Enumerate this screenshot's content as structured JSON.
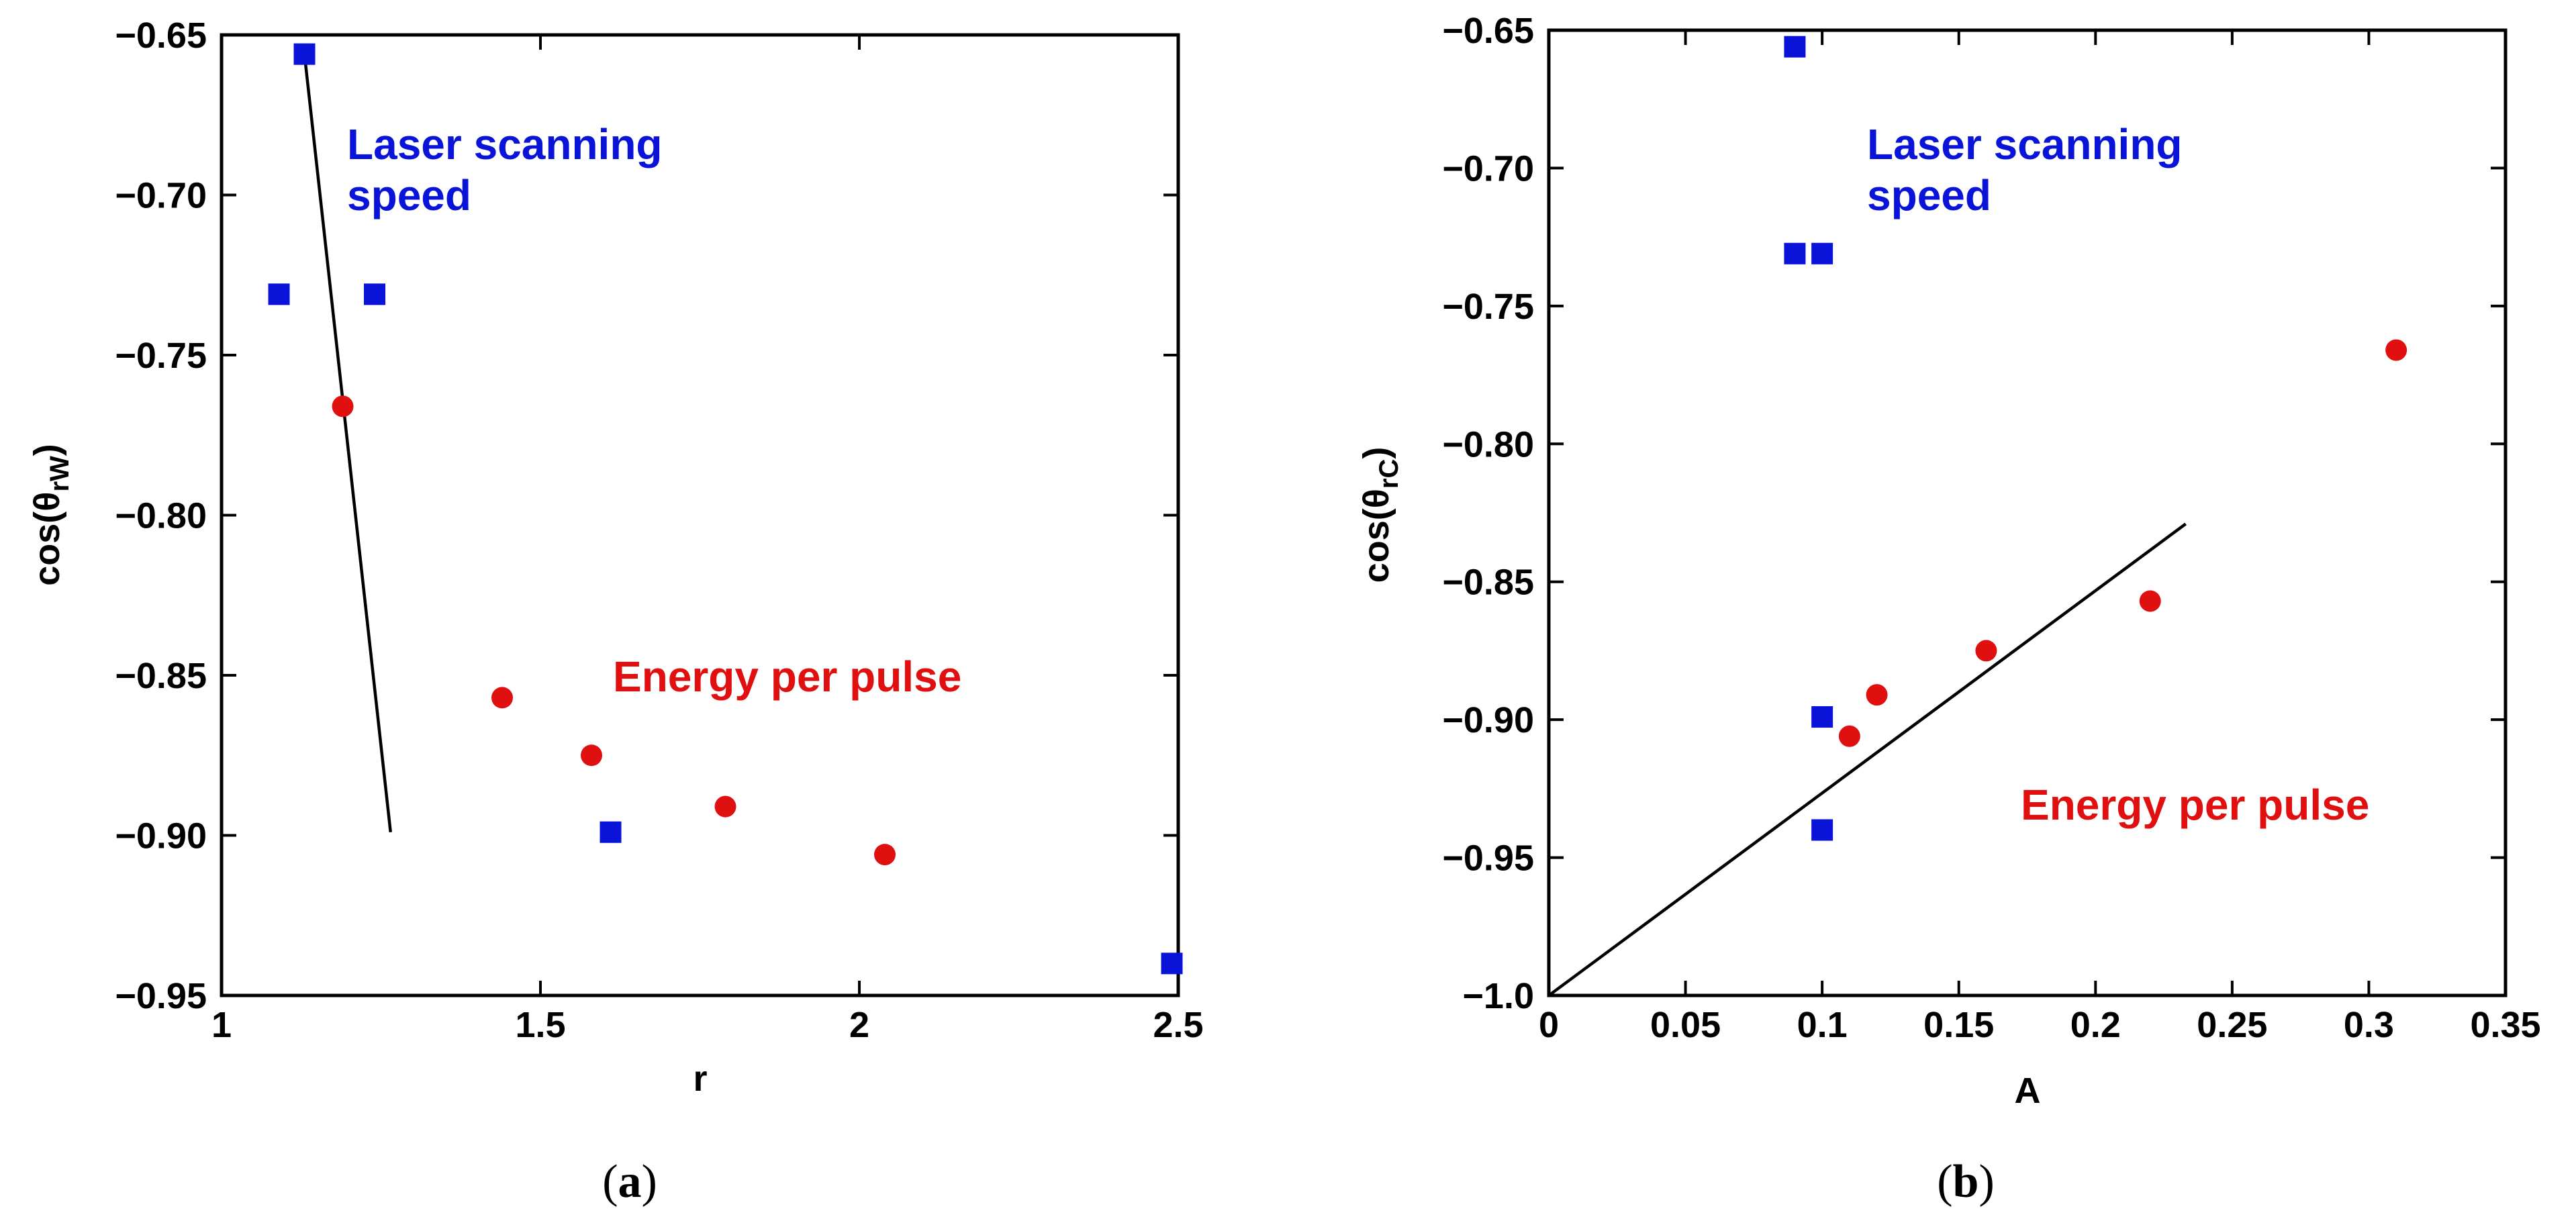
{
  "colors": {
    "series_speed": "#0a14d8",
    "series_energy": "#e01010",
    "fit": "#000000"
  },
  "chart_data": [
    {
      "id": "a",
      "type": "scatter",
      "xlabel": "r",
      "ylabel": {
        "base": "cos(θ",
        "sub": "rW",
        "close": ")"
      },
      "xlim": [
        1,
        2.5
      ],
      "ylim": [
        -0.95,
        -0.65
      ],
      "xticks": [
        1,
        1.5,
        2,
        2.5
      ],
      "xtick_labels": [
        "1",
        "1.5",
        "2",
        "2.5"
      ],
      "yticks": [
        -0.95,
        -0.9,
        -0.85,
        -0.8,
        -0.75,
        -0.7,
        -0.65
      ],
      "ytick_labels": [
        "−0.95",
        "−0.90",
        "−0.85",
        "−0.80",
        "−0.75",
        "−0.70",
        "−0.65"
      ],
      "series": [
        {
          "name": "Laser scanning speed",
          "marker": "square",
          "color": "#0a14d8",
          "x": [
            1.13,
            1.09,
            1.24,
            1.61,
            2.49
          ],
          "y": [
            -0.656,
            -0.731,
            -0.731,
            -0.899,
            -0.94
          ]
        },
        {
          "name": "Energy per pulse",
          "marker": "circle",
          "color": "#e01010",
          "x": [
            1.19,
            1.44,
            1.58,
            1.79,
            2.04
          ],
          "y": [
            -0.766,
            -0.857,
            -0.875,
            -0.891,
            -0.906
          ]
        }
      ],
      "fit_line": {
        "x": [
          1.13,
          1.265
        ],
        "y": [
          -0.656,
          -0.899
        ]
      },
      "annotations": [
        {
          "lines": [
            "Laser scanning",
            "speed"
          ],
          "color": "#0a14d8"
        },
        {
          "lines": [
            "Energy per pulse"
          ],
          "color": "#e01010"
        }
      ],
      "caption": "a"
    },
    {
      "id": "b",
      "type": "scatter",
      "xlabel": "A",
      "ylabel": {
        "base": "cos(θ",
        "sub": "rC",
        "close": ")"
      },
      "xlim": [
        0,
        0.35
      ],
      "ylim": [
        -1.0,
        -0.65
      ],
      "xticks": [
        0,
        0.05,
        0.1,
        0.15,
        0.2,
        0.25,
        0.3,
        0.35
      ],
      "xtick_labels": [
        "0",
        "0.05",
        "0.1",
        "0.15",
        "0.2",
        "0.25",
        "0.3",
        "0.35"
      ],
      "yticks": [
        -1.0,
        -0.95,
        -0.9,
        -0.85,
        -0.8,
        -0.75,
        -0.7,
        -0.65
      ],
      "ytick_labels": [
        "−1.0",
        "−0.95",
        "−0.90",
        "−0.85",
        "−0.80",
        "−0.75",
        "−0.70",
        "−0.65"
      ],
      "series": [
        {
          "name": "Laser scanning speed",
          "marker": "square",
          "color": "#0a14d8",
          "x": [
            0.09,
            0.09,
            0.1,
            0.1,
            0.1
          ],
          "y": [
            -0.656,
            -0.731,
            -0.731,
            -0.899,
            -0.94
          ]
        },
        {
          "name": "Energy per pulse",
          "marker": "circle",
          "color": "#e01010",
          "x": [
            0.31,
            0.22,
            0.16,
            0.12,
            0.11
          ],
          "y": [
            -0.766,
            -0.857,
            -0.875,
            -0.891,
            -0.906
          ]
        }
      ],
      "fit_line": {
        "x": [
          0,
          0.233
        ],
        "y": [
          -1.0,
          -0.829
        ]
      },
      "annotations": [
        {
          "lines": [
            "Laser scanning",
            "speed"
          ],
          "color": "#0a14d8"
        },
        {
          "lines": [
            "Energy per pulse"
          ],
          "color": "#e01010"
        }
      ],
      "caption": "b"
    }
  ]
}
